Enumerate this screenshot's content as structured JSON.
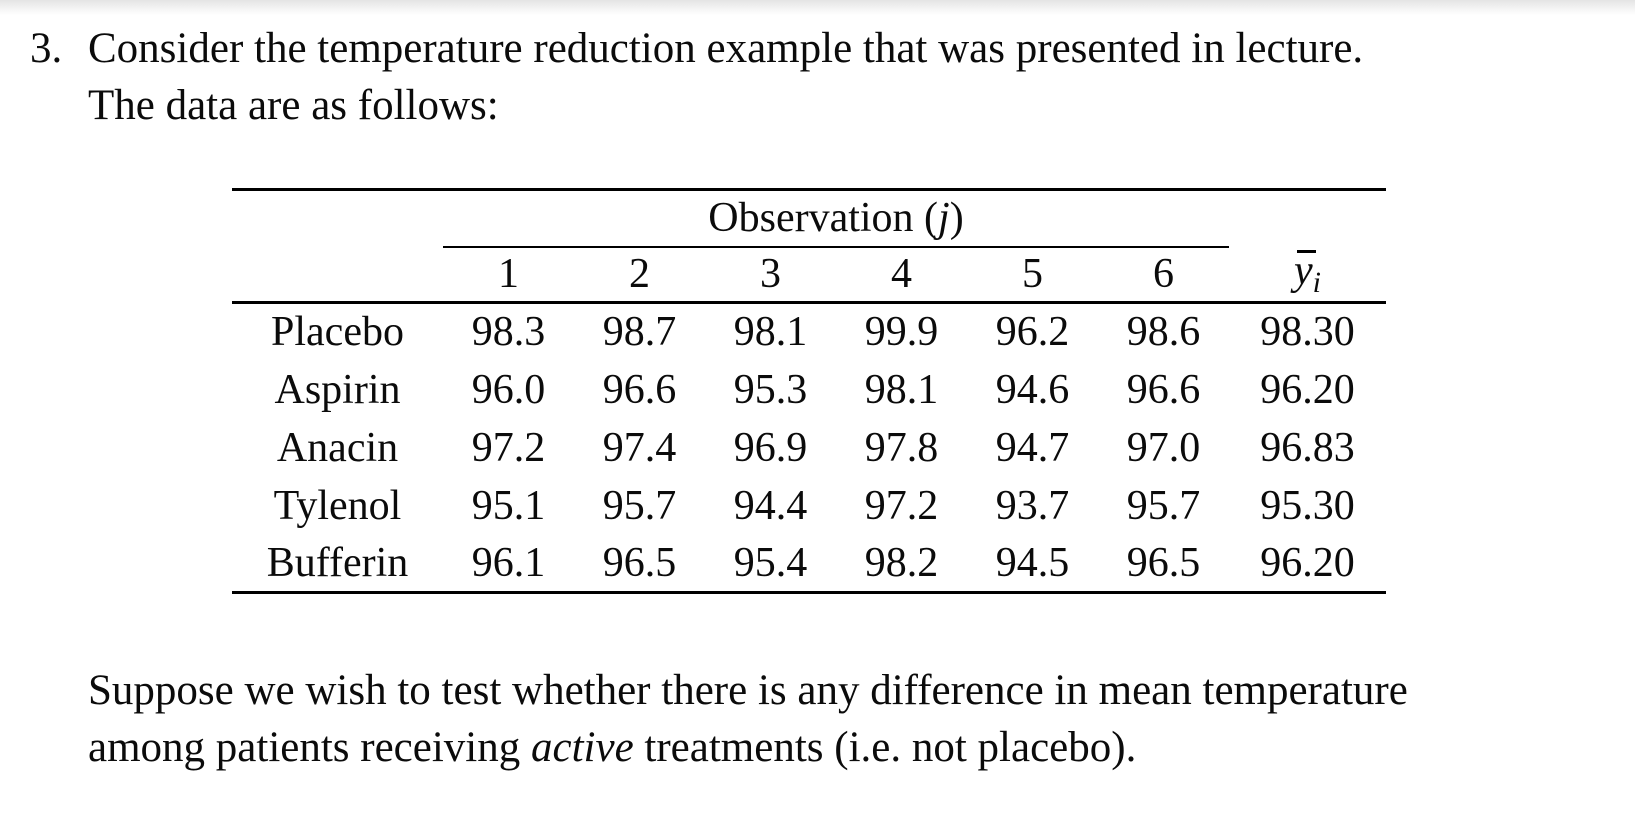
{
  "page": {
    "background": "#ffffff",
    "text_color": "#0b0b0b"
  },
  "problem": {
    "number_label": "3.",
    "intro_line1": "Consider the temperature reduction example that was presented in lecture.",
    "intro_line2": "The data are as follows:",
    "question_line1": "Suppose we wish to test whether there is any difference in mean temperature",
    "question_line2": {
      "pre": "among patients receiving ",
      "italic": "active",
      "post": " treatments (i.e. not placebo)."
    }
  },
  "table": {
    "observation_header": {
      "prefix": "Observation (",
      "variable": "j",
      "suffix": ")"
    },
    "obs_columns": [
      "1",
      "2",
      "3",
      "4",
      "5",
      "6"
    ],
    "mean_header": {
      "base": "y",
      "subscript": "i"
    },
    "rows": [
      {
        "label": "Placebo",
        "values": [
          "98.3",
          "98.7",
          "98.1",
          "99.9",
          "96.2",
          "98.6"
        ],
        "mean": "98.30"
      },
      {
        "label": "Aspirin",
        "values": [
          "96.0",
          "96.6",
          "95.3",
          "98.1",
          "94.6",
          "96.6"
        ],
        "mean": "96.20"
      },
      {
        "label": "Anacin",
        "values": [
          "97.2",
          "97.4",
          "96.9",
          "97.8",
          "94.7",
          "97.0"
        ],
        "mean": "96.83"
      },
      {
        "label": "Tylenol",
        "values": [
          "95.1",
          "95.7",
          "94.4",
          "97.2",
          "93.7",
          "95.7"
        ],
        "mean": "95.30"
      },
      {
        "label": "Bufferin",
        "values": [
          "96.1",
          "96.5",
          "95.4",
          "98.2",
          "94.5",
          "96.5"
        ],
        "mean": "96.20"
      }
    ]
  }
}
